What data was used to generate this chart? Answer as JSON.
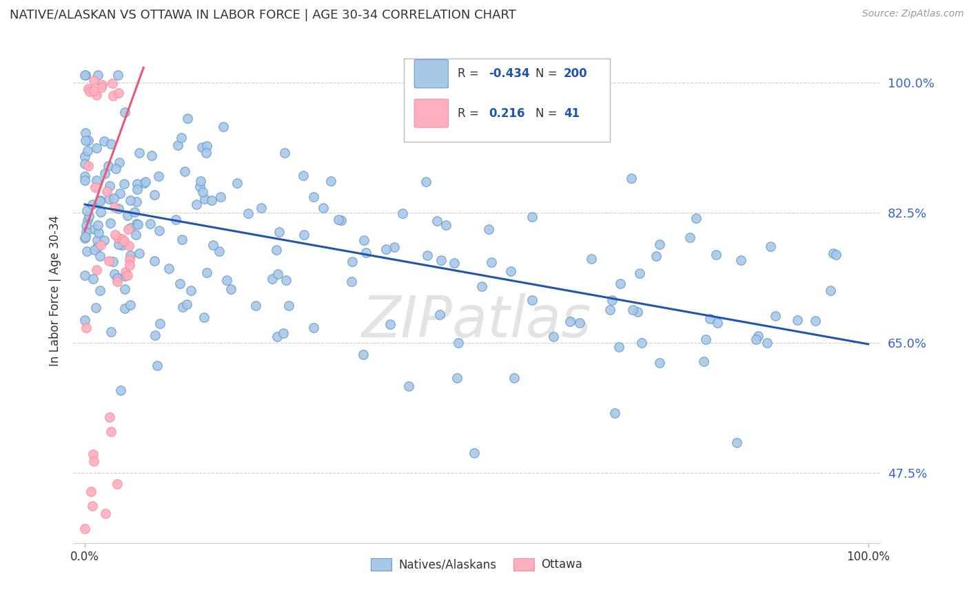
{
  "title": "NATIVE/ALASKAN VS OTTAWA IN LABOR FORCE | AGE 30-34 CORRELATION CHART",
  "source": "Source: ZipAtlas.com",
  "ylabel": "In Labor Force | Age 30-34",
  "xlim": [
    0.0,
    1.0
  ],
  "ylim": [
    0.38,
    1.06
  ],
  "yticks": [
    0.475,
    0.65,
    0.825,
    1.0
  ],
  "ytick_labels": [
    "47.5%",
    "65.0%",
    "82.5%",
    "100.0%"
  ],
  "xtick_labels": [
    "0.0%",
    "100.0%"
  ],
  "blue_color": "#A8C8E8",
  "pink_color": "#FFB0C0",
  "blue_edge_color": "#6699CC",
  "pink_edge_color": "#FF8899",
  "blue_line_color": "#2255AA",
  "pink_line_color": "#EE5577",
  "watermark": "ZIPatlas",
  "background_color": "#FFFFFF",
  "grid_color": "#CCCCCC",
  "blue_R": -0.434,
  "blue_N": 200,
  "pink_R": 0.216,
  "pink_N": 41,
  "blue_line_x": [
    0.0,
    1.0
  ],
  "blue_line_y": [
    0.836,
    0.648
  ],
  "pink_line_x": [
    0.0,
    0.075
  ],
  "pink_line_y": [
    0.8,
    1.02
  ]
}
